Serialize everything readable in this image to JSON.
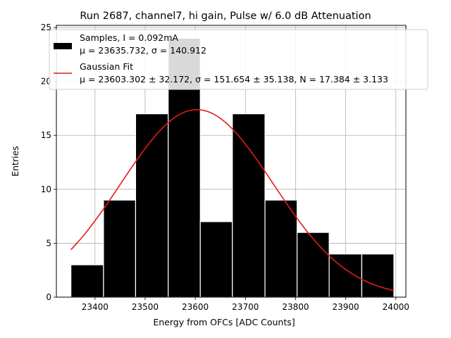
{
  "chart_data": {
    "type": "bar",
    "title": "Run 2687, channel7, hi gain, Pulse w/ 6.0 dB Attenuation",
    "xlabel": "Energy from OFCs [ADC Counts]",
    "ylabel": "Entries",
    "xlim": [
      23323,
      24020
    ],
    "ylim": [
      0,
      25.2
    ],
    "xticks": [
      23400,
      23500,
      23600,
      23700,
      23800,
      23900,
      24000
    ],
    "yticks": [
      0,
      5,
      10,
      15,
      20,
      25
    ],
    "grid": true,
    "legend_position": "upper-right",
    "histogram": {
      "name_lines": [
        "Samples, I = 0.092mA",
        "μ = 23635.732, σ = 140.912"
      ],
      "color": "#000000",
      "bins": [
        {
          "x0": 23352,
          "x1": 23417,
          "count": 3
        },
        {
          "x0": 23417,
          "x1": 23481,
          "count": 9
        },
        {
          "x0": 23481,
          "x1": 23546,
          "count": 17
        },
        {
          "x0": 23546,
          "x1": 23610,
          "count": 24
        },
        {
          "x0": 23610,
          "x1": 23674,
          "count": 7
        },
        {
          "x0": 23674,
          "x1": 23739,
          "count": 17
        },
        {
          "x0": 23739,
          "x1": 23803,
          "count": 9
        },
        {
          "x0": 23803,
          "x1": 23867,
          "count": 6
        },
        {
          "x0": 23867,
          "x1": 23932,
          "count": 4
        },
        {
          "x0": 23932,
          "x1": 23996,
          "count": 4
        }
      ]
    },
    "fit": {
      "name_lines": [
        "Gaussian Fit",
        "μ = 23603.302 ± 32.172, σ = 151.654 ± 35.138, N = 17.384 ± 3.133"
      ],
      "color": "#e41a1c",
      "mu": 23603.302,
      "sigma": 151.654,
      "amplitude": 17.384,
      "x_range": [
        23352,
        23996
      ]
    }
  }
}
